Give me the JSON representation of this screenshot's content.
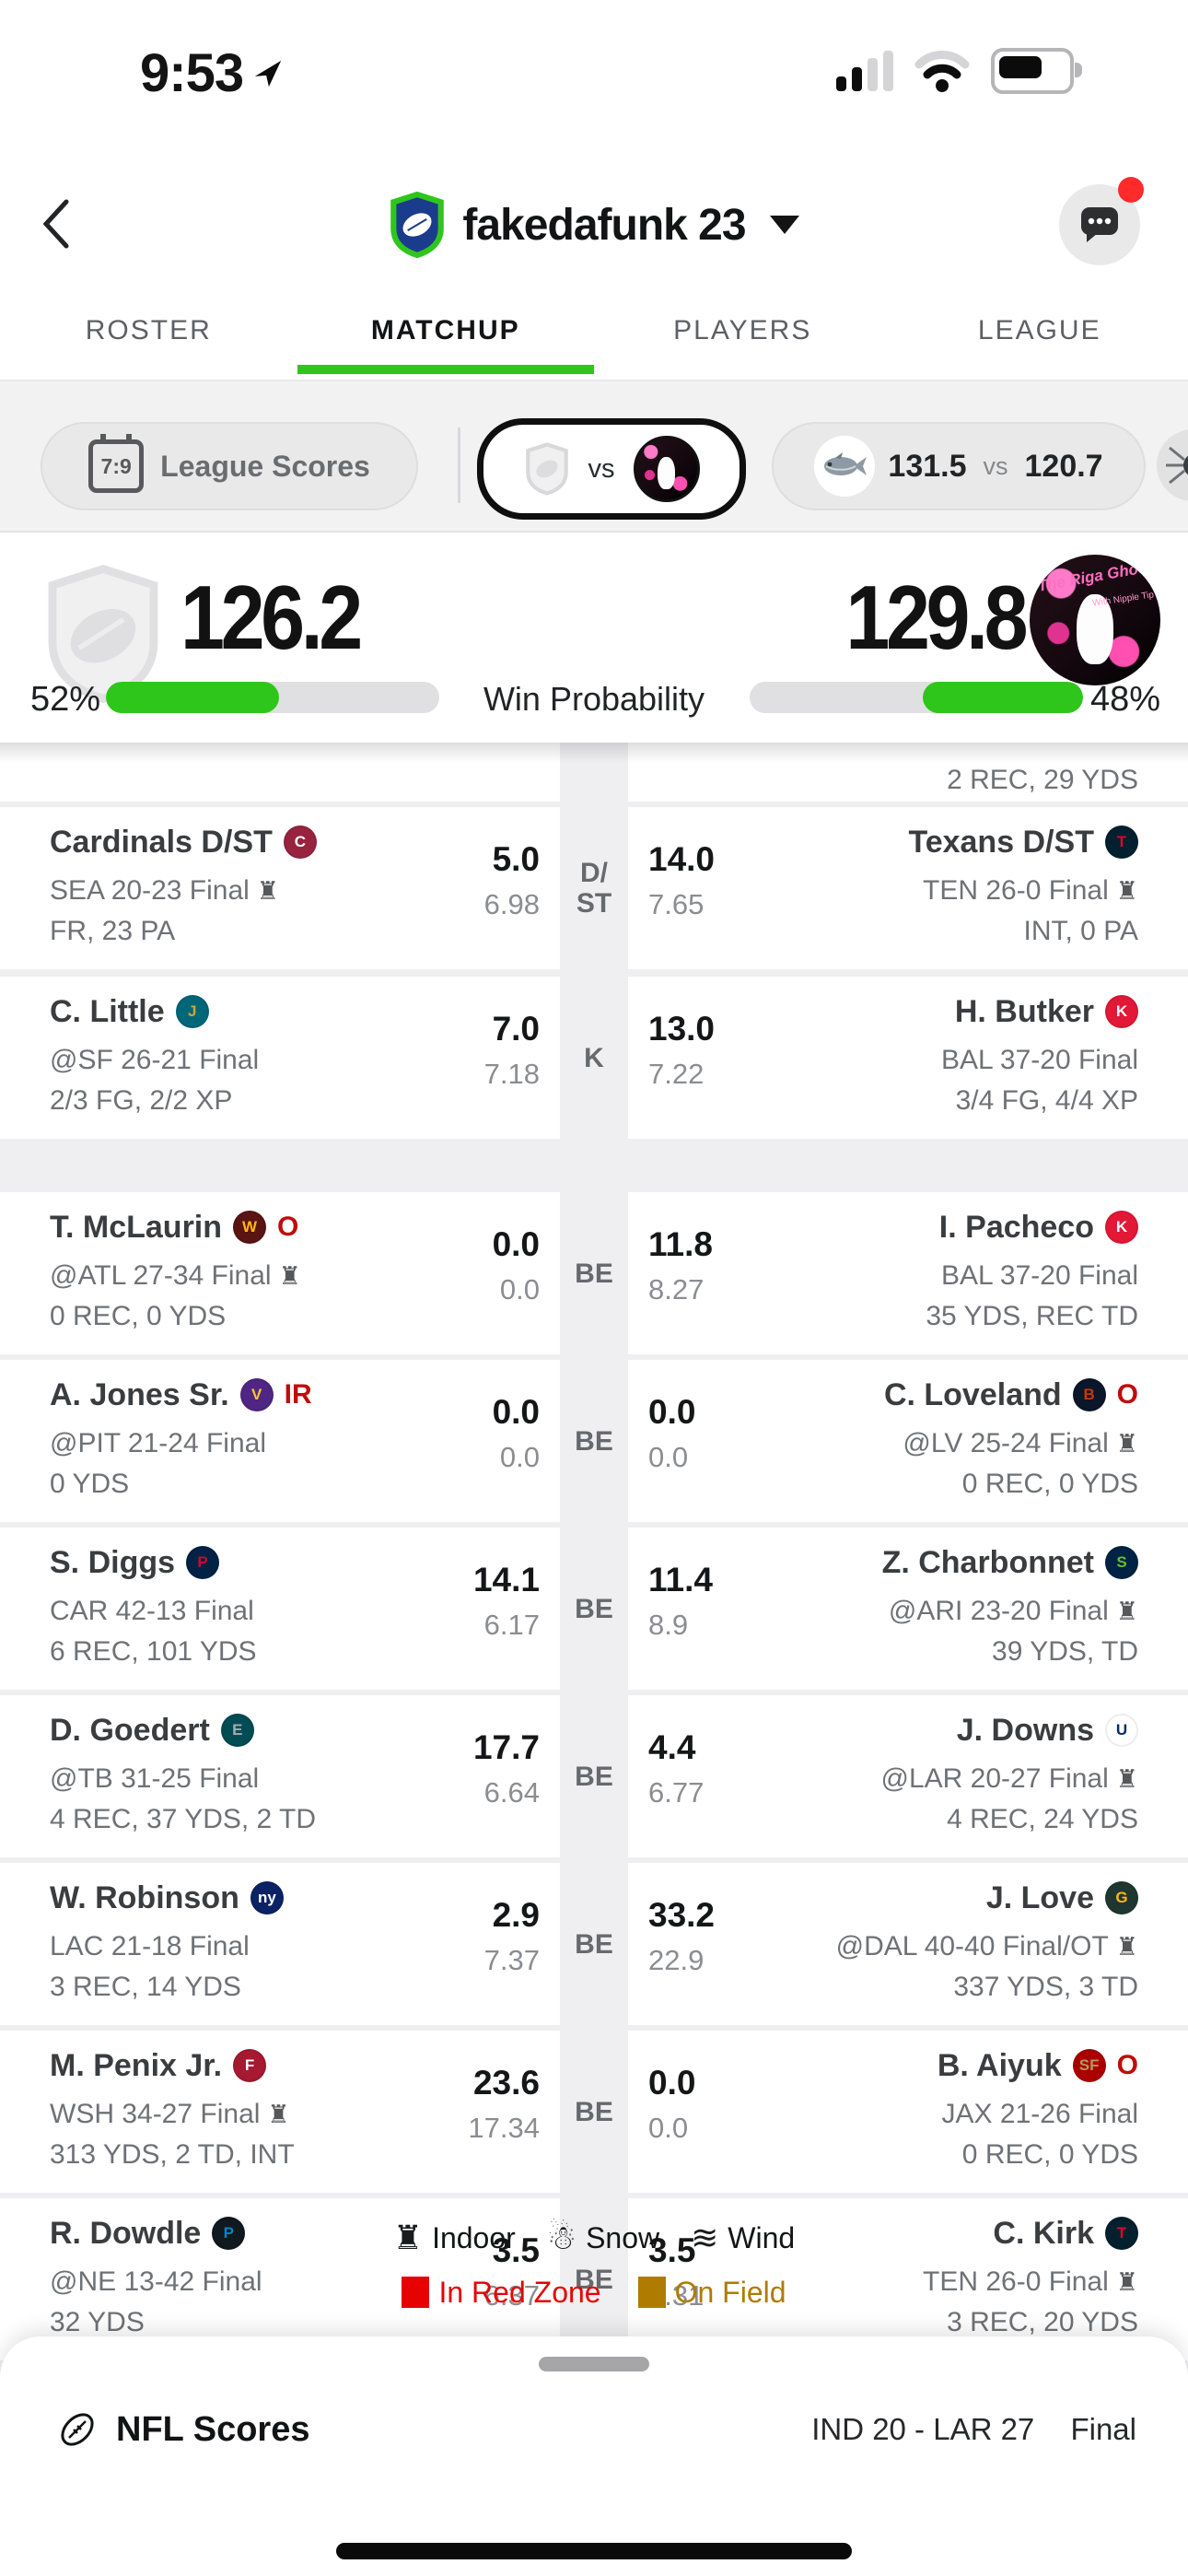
{
  "colors": {
    "accent_green": "#2FC61B",
    "status_red": "#BF0D0D",
    "badge_red": "#FF2A2A",
    "red_zone": "#E60202",
    "on_field": "#AF7B00"
  },
  "icons": {
    "indoor_glyph": "♜"
  },
  "status_bar": {
    "time": "9:53"
  },
  "header": {
    "title": "fakedafunk 23"
  },
  "tabs": [
    {
      "label": "ROSTER",
      "active": false
    },
    {
      "label": "MATCHUP",
      "active": true
    },
    {
      "label": "PLAYERS",
      "active": false
    },
    {
      "label": "LEAGUE",
      "active": false
    }
  ],
  "score_strip": {
    "calendar_icon_text": "7:9",
    "league_scores_label": "League Scores",
    "selected_matchup": {
      "vs": "vs"
    },
    "next_matchup": {
      "score_a": "131.5",
      "vs": "vs",
      "score_b": "120.7"
    }
  },
  "matchup": {
    "left_score": "126.2",
    "right_score": "129.8",
    "win_probability_label": "Win Probability",
    "left_pct": "52%",
    "right_pct": "48%",
    "left_fill_pct": 52,
    "right_fill_pct": 48,
    "right_avatar_text_1": "The Riga Ghost",
    "right_avatar_text_2": "With Nipple Tip"
  },
  "teams": {
    "cardinals": {
      "bg": "#97233F",
      "fg": "#FFFFFF",
      "letter": "C"
    },
    "texans": {
      "bg": "#03202F",
      "fg": "#E4002B",
      "letter": "T"
    },
    "jaguars": {
      "bg": "#006778",
      "fg": "#D7A22A",
      "letter": "J"
    },
    "chiefs": {
      "bg": "#E31837",
      "fg": "#FFFFFF",
      "letter": "K"
    },
    "commanders": {
      "bg": "#5A1414",
      "fg": "#FFB612",
      "letter": "W"
    },
    "vikings": {
      "bg": "#4F2683",
      "fg": "#FFC62F",
      "letter": "V"
    },
    "bears": {
      "bg": "#0B162A",
      "fg": "#C83803",
      "letter": "B"
    },
    "patriots": {
      "bg": "#002244",
      "fg": "#C60C30",
      "letter": "P"
    },
    "seahawks": {
      "bg": "#002244",
      "fg": "#69BE28",
      "letter": "S"
    },
    "eagles": {
      "bg": "#004C54",
      "fg": "#A5ACAF",
      "letter": "E"
    },
    "colts": {
      "bg": "#FFFFFF",
      "fg": "#002C5F",
      "letter": "U"
    },
    "giants": {
      "bg": "#0B2265",
      "fg": "#FFFFFF",
      "letter": "ny"
    },
    "packers": {
      "bg": "#203731",
      "fg": "#FFB612",
      "letter": "G"
    },
    "falcons": {
      "bg": "#A71930",
      "fg": "#FFFFFF",
      "letter": "F"
    },
    "niners": {
      "bg": "#AA0000",
      "fg": "#B3995D",
      "letter": "SF"
    },
    "panthers": {
      "bg": "#101820",
      "fg": "#0085CA",
      "letter": "P"
    }
  },
  "partial_row": {
    "right_line3": "2 REC, 29 YDS"
  },
  "roster_rows": [
    {
      "pos": "D/\nST",
      "gap_after": 8,
      "left": {
        "name": "Cardinals D/ST",
        "team": "cardinals",
        "status": "",
        "line2": "SEA 20-23 Final",
        "indoor": true,
        "line3": "FR, 23 PA",
        "pts": "5.0",
        "proj": "6.98"
      },
      "right": {
        "name": "Texans D/ST",
        "team": "texans",
        "status": "",
        "line2": "TEN 26-0 Final",
        "indoor": true,
        "line3": "INT, 0 PA",
        "pts": "14.0",
        "proj": "7.65"
      }
    },
    {
      "pos": "K",
      "gap_after": 58,
      "left": {
        "name": "C. Little",
        "team": "jaguars",
        "status": "",
        "line2": "@SF 26-21 Final",
        "indoor": false,
        "line3": "2/3 FG, 2/2 XP",
        "pts": "7.0",
        "proj": "7.18"
      },
      "right": {
        "name": "H. Butker",
        "team": "chiefs",
        "status": "",
        "line2": "BAL 37-20 Final",
        "indoor": false,
        "line3": "3/4 FG, 4/4 XP",
        "pts": "13.0",
        "proj": "7.22"
      }
    },
    {
      "pos": "BE",
      "gap_after": 6,
      "left": {
        "name": "T. McLaurin",
        "team": "commanders",
        "status": "O",
        "line2": "@ATL 27-34 Final",
        "indoor": true,
        "line3": "0 REC, 0 YDS",
        "pts": "0.0",
        "proj": "0.0"
      },
      "right": {
        "name": "I. Pacheco",
        "team": "chiefs",
        "status": "",
        "line2": "BAL 37-20 Final",
        "indoor": false,
        "line3": "35 YDS, REC TD",
        "pts": "11.8",
        "proj": "8.27"
      }
    },
    {
      "pos": "BE",
      "gap_after": 6,
      "left": {
        "name": "A. Jones Sr.",
        "team": "vikings",
        "status": "IR",
        "line2": "@PIT 21-24 Final",
        "indoor": false,
        "line3": "0 YDS",
        "pts": "0.0",
        "proj": "0.0"
      },
      "right": {
        "name": "C. Loveland",
        "team": "bears",
        "status": "O",
        "line2": "@LV 25-24 Final",
        "indoor": true,
        "line3": "0 REC, 0 YDS",
        "pts": "0.0",
        "proj": "0.0"
      }
    },
    {
      "pos": "BE",
      "gap_after": 6,
      "left": {
        "name": "S. Diggs",
        "team": "patriots",
        "status": "",
        "line2": "CAR 42-13 Final",
        "indoor": false,
        "line3": "6 REC, 101 YDS",
        "pts": "14.1",
        "proj": "6.17"
      },
      "right": {
        "name": "Z. Charbonnet",
        "team": "seahawks",
        "status": "",
        "line2": "@ARI 23-20 Final",
        "indoor": true,
        "line3": "39 YDS, TD",
        "pts": "11.4",
        "proj": "8.9"
      }
    },
    {
      "pos": "BE",
      "gap_after": 6,
      "left": {
        "name": "D. Goedert",
        "team": "eagles",
        "status": "",
        "line2": "@TB 31-25 Final",
        "indoor": false,
        "line3": "4 REC, 37 YDS, 2 TD",
        "pts": "17.7",
        "proj": "6.64"
      },
      "right": {
        "name": "J. Downs",
        "team": "colts",
        "status": "",
        "line2": "@LAR 20-27 Final",
        "indoor": true,
        "line3": "4 REC, 24 YDS",
        "pts": "4.4",
        "proj": "6.77"
      }
    },
    {
      "pos": "BE",
      "gap_after": 6,
      "left": {
        "name": "W. Robinson",
        "team": "giants",
        "status": "",
        "line2": "LAC 21-18 Final",
        "indoor": false,
        "line3": "3 REC, 14 YDS",
        "pts": "2.9",
        "proj": "7.37"
      },
      "right": {
        "name": "J. Love",
        "team": "packers",
        "status": "",
        "line2": "@DAL 40-40 Final/OT",
        "indoor": true,
        "line3": "337 YDS, 3 TD",
        "pts": "33.2",
        "proj": "22.9"
      }
    },
    {
      "pos": "BE",
      "gap_after": 6,
      "left": {
        "name": "M. Penix Jr.",
        "team": "falcons",
        "status": "",
        "line2": "WSH 34-27 Final",
        "indoor": true,
        "line3": "313 YDS, 2 TD, INT",
        "pts": "23.6",
        "proj": "17.34"
      },
      "right": {
        "name": "B. Aiyuk",
        "team": "niners",
        "status": "O",
        "line2": "JAX 21-26 Final",
        "indoor": false,
        "line3": "0 REC, 0 YDS",
        "pts": "0.0",
        "proj": "0.0"
      }
    },
    {
      "pos": "BE",
      "gap_after": 6,
      "left": {
        "name": "R. Dowdle",
        "team": "panthers",
        "status": "",
        "line2": "@NE 13-42 Final",
        "indoor": false,
        "line3": "32 YDS",
        "pts": "3.5",
        "proj": "6.37"
      },
      "right": {
        "name": "C. Kirk",
        "team": "texans",
        "status": "",
        "line2": "TEN 26-0 Final",
        "indoor": true,
        "line3": "3 REC, 20 YDS",
        "pts": "3.5",
        "proj": "9.31"
      }
    }
  ],
  "legend": {
    "weather": [
      {
        "icon": "stadium-icon",
        "glyph": "♜",
        "label": "Indoor"
      },
      {
        "icon": "snow-icon",
        "glyph": "☃",
        "label": "Snow"
      },
      {
        "icon": "wind-icon",
        "glyph": "≋",
        "label": "Wind"
      }
    ],
    "zones": [
      {
        "color": "#E60202",
        "label": "In Red Zone"
      },
      {
        "color": "#AF7B00",
        "label": "On Field"
      }
    ]
  },
  "bottom_sheet": {
    "title": "NFL Scores",
    "ticker_game": "IND 20 - LAR 27",
    "ticker_status": "Final"
  }
}
